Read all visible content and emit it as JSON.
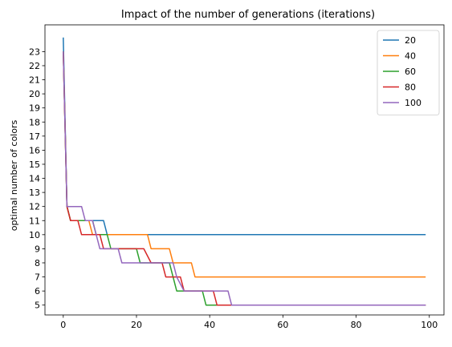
{
  "chart_data": {
    "type": "line",
    "title": "Impact of the number of generations (iterations)",
    "xlabel": "",
    "ylabel": "optimal number of colors",
    "xlim": [
      -5,
      104
    ],
    "ylim": [
      4.3,
      24.9
    ],
    "xticks": [
      0,
      20,
      40,
      60,
      80,
      100
    ],
    "yticks": [
      5,
      6,
      7,
      8,
      9,
      10,
      11,
      12,
      13,
      14,
      15,
      16,
      17,
      18,
      19,
      20,
      21,
      22,
      23
    ],
    "legend_position": "top-right",
    "grid": false,
    "series": [
      {
        "name": "20",
        "color": "#1f77b4",
        "points": [
          [
            0,
            24
          ],
          [
            1,
            12
          ],
          [
            2,
            11
          ],
          [
            11,
            11
          ],
          [
            12,
            10
          ],
          [
            99,
            10
          ]
        ]
      },
      {
        "name": "40",
        "color": "#ff7f0e",
        "points": [
          [
            0,
            23
          ],
          [
            1,
            12
          ],
          [
            2,
            11
          ],
          [
            7,
            11
          ],
          [
            8,
            10
          ],
          [
            23,
            10
          ],
          [
            24,
            9
          ],
          [
            29,
            9
          ],
          [
            30,
            8
          ],
          [
            35,
            8
          ],
          [
            36,
            7
          ],
          [
            99,
            7
          ]
        ]
      },
      {
        "name": "60",
        "color": "#2ca02c",
        "points": [
          [
            0,
            23
          ],
          [
            1,
            12
          ],
          [
            2,
            11
          ],
          [
            8,
            11
          ],
          [
            9,
            10
          ],
          [
            12,
            10
          ],
          [
            13,
            9
          ],
          [
            20,
            9
          ],
          [
            21,
            8
          ],
          [
            29,
            8
          ],
          [
            31,
            6
          ],
          [
            38,
            6
          ],
          [
            39,
            5
          ],
          [
            99,
            5
          ]
        ]
      },
      {
        "name": "80",
        "color": "#d62728",
        "points": [
          [
            0,
            23
          ],
          [
            1,
            12
          ],
          [
            2,
            11
          ],
          [
            4,
            11
          ],
          [
            5,
            10
          ],
          [
            10,
            10
          ],
          [
            11,
            9
          ],
          [
            22,
            9
          ],
          [
            24,
            8
          ],
          [
            27,
            8
          ],
          [
            28,
            7
          ],
          [
            32,
            7
          ],
          [
            33,
            6
          ],
          [
            41,
            6
          ],
          [
            42,
            5
          ],
          [
            99,
            5
          ]
        ]
      },
      {
        "name": "100",
        "color": "#9467bd",
        "points": [
          [
            0,
            23
          ],
          [
            1,
            12
          ],
          [
            5,
            12
          ],
          [
            6,
            11
          ],
          [
            8,
            11
          ],
          [
            10,
            9
          ],
          [
            15,
            9
          ],
          [
            16,
            8
          ],
          [
            30,
            8
          ],
          [
            31,
            7
          ],
          [
            33,
            6
          ],
          [
            45,
            6
          ],
          [
            46,
            5
          ],
          [
            99,
            5
          ]
        ]
      }
    ]
  }
}
